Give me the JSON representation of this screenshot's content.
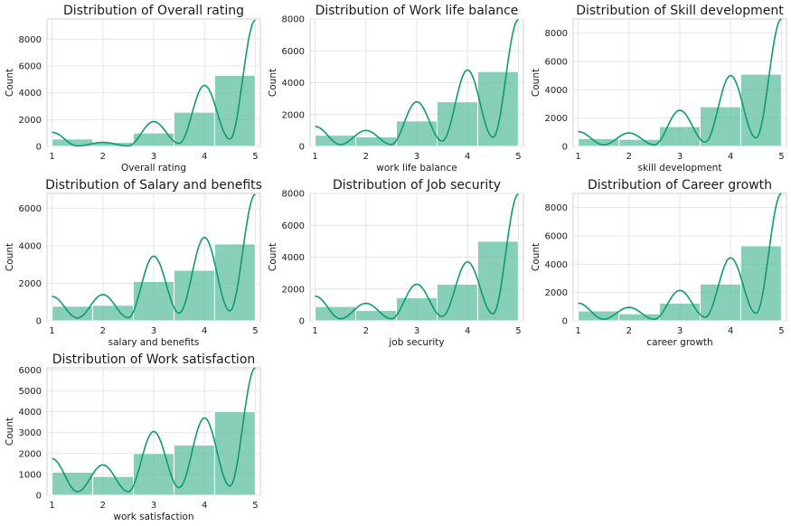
{
  "colors": {
    "bar_fill": "#66c2a5",
    "bar_opacity": 0.78,
    "kde_line": "#109a73",
    "grid": "#e4e4e4",
    "axes_edge": "#d0d0d0"
  },
  "chart_data": [
    {
      "type": "bar",
      "title": "Distribution of Overall rating",
      "xlabel": "Overall rating",
      "ylabel": "Count",
      "x": [
        1,
        2,
        3,
        4,
        5
      ],
      "values": [
        550,
        300,
        1000,
        2550,
        5300
      ],
      "xlim": [
        0.9,
        5.1
      ],
      "ylim": [
        0,
        9500
      ],
      "yticks": [
        0,
        2000,
        4000,
        6000,
        8000
      ],
      "kde": [
        1050,
        300,
        1850,
        4550,
        9400
      ],
      "grid": true
    },
    {
      "type": "bar",
      "title": "Distribution of Work life balance",
      "xlabel": "work life balance",
      "ylabel": "Count",
      "x": [
        1,
        2,
        3,
        4,
        5
      ],
      "values": [
        700,
        600,
        1600,
        2800,
        4700
      ],
      "xlim": [
        0.9,
        5.1
      ],
      "ylim": [
        0,
        8000
      ],
      "yticks": [
        0,
        2000,
        4000,
        6000,
        8000
      ],
      "kde": [
        1250,
        1000,
        2800,
        4800,
        7950
      ],
      "grid": true
    },
    {
      "type": "bar",
      "title": "Distribution of Skill development",
      "xlabel": "skill development",
      "ylabel": "Count",
      "x": [
        1,
        2,
        3,
        4,
        5
      ],
      "values": [
        550,
        500,
        1400,
        2800,
        5100
      ],
      "xlim": [
        0.9,
        5.1
      ],
      "ylim": [
        0,
        9000
      ],
      "yticks": [
        0,
        2000,
        4000,
        6000,
        8000
      ],
      "kde": [
        1050,
        950,
        2550,
        5000,
        9000
      ],
      "grid": true
    },
    {
      "type": "bar",
      "title": "Distribution of Salary and benefits",
      "xlabel": "salary and benefits",
      "ylabel": "Count",
      "x": [
        1,
        2,
        3,
        4,
        5
      ],
      "values": [
        780,
        830,
        2100,
        2700,
        4100
      ],
      "xlim": [
        0.9,
        5.1
      ],
      "ylim": [
        0,
        6800
      ],
      "yticks": [
        0,
        2000,
        4000,
        6000
      ],
      "kde": [
        1300,
        1400,
        3450,
        4450,
        6750
      ],
      "grid": true
    },
    {
      "type": "bar",
      "title": "Distribution of Job security",
      "xlabel": "job security",
      "ylabel": "Count",
      "x": [
        1,
        2,
        3,
        4,
        5
      ],
      "values": [
        900,
        650,
        1450,
        2300,
        5000
      ],
      "xlim": [
        0.9,
        5.1
      ],
      "ylim": [
        0,
        8000
      ],
      "yticks": [
        0,
        2000,
        4000,
        6000,
        8000
      ],
      "kde": [
        1550,
        1100,
        2300,
        3700,
        7950
      ],
      "grid": true
    },
    {
      "type": "bar",
      "title": "Distribution of Career growth",
      "xlabel": "career growth",
      "ylabel": "Count",
      "x": [
        1,
        2,
        3,
        4,
        5
      ],
      "values": [
        700,
        500,
        1250,
        2600,
        5300
      ],
      "xlim": [
        0.9,
        5.1
      ],
      "ylim": [
        0,
        9000
      ],
      "yticks": [
        0,
        2000,
        4000,
        6000,
        8000
      ],
      "kde": [
        1250,
        950,
        2150,
        4450,
        9000
      ],
      "grid": true
    },
    {
      "type": "bar",
      "title": "Distribution of Work satisfaction",
      "xlabel": "work satisfaction",
      "ylabel": "Count",
      "x": [
        1,
        2,
        3,
        4,
        5
      ],
      "values": [
        1100,
        900,
        2000,
        2400,
        4000
      ],
      "xlim": [
        0.9,
        5.1
      ],
      "ylim": [
        0,
        6100
      ],
      "yticks": [
        0,
        1000,
        2000,
        3000,
        4000,
        5000,
        6000
      ],
      "kde": [
        1750,
        1450,
        3050,
        3700,
        6100
      ],
      "grid": true
    }
  ]
}
